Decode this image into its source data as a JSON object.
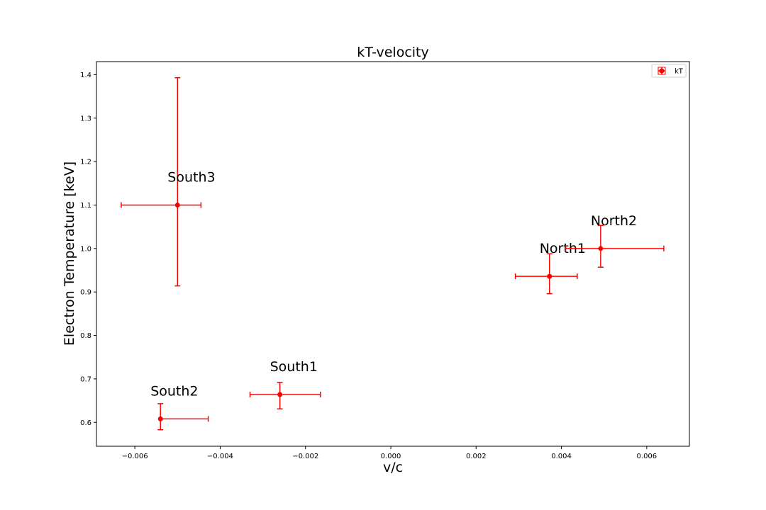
{
  "chart_data": {
    "type": "scatter",
    "title": "kT-velocity",
    "xlabel": "v/c",
    "ylabel": "Electron Temperature [keV]",
    "xlim": [
      -0.0069,
      0.007
    ],
    "ylim": [
      0.545,
      1.43
    ],
    "xticks": [
      -0.006,
      -0.004,
      -0.002,
      0.0,
      0.002,
      0.004,
      0.006
    ],
    "xtick_labels": [
      "−0.006",
      "−0.004",
      "−0.002",
      "0.000",
      "0.002",
      "0.004",
      "0.006"
    ],
    "yticks": [
      0.6,
      0.7,
      0.8,
      0.9,
      1.0,
      1.1,
      1.2,
      1.3,
      1.4
    ],
    "ytick_labels": [
      "0.6",
      "0.7",
      "0.8",
      "0.9",
      "1.0",
      "1.1",
      "1.2",
      "1.3",
      "1.4"
    ],
    "grid": false,
    "legend": {
      "position": "top-right",
      "entries": [
        "kT"
      ]
    },
    "color": "#ff0000",
    "series": [
      {
        "name": "kT",
        "points": [
          {
            "label": "South3",
            "x": -0.005,
            "y": 1.1,
            "xerr": [
              0.00132,
              0.00055
            ],
            "yerr": [
              0.186,
              0.293
            ]
          },
          {
            "label": "South2",
            "x": -0.0054,
            "y": 0.608,
            "xerr": [
              0.0,
              0.00112
            ],
            "yerr": [
              0.025,
              0.035
            ]
          },
          {
            "label": "South1",
            "x": -0.0026,
            "y": 0.664,
            "xerr": [
              0.0007,
              0.00095
            ],
            "yerr": [
              0.033,
              0.028
            ]
          },
          {
            "label": "North1",
            "x": 0.00372,
            "y": 0.936,
            "xerr": [
              0.0008,
              0.00065
            ],
            "yerr": [
              0.04,
              0.052
            ]
          },
          {
            "label": "North2",
            "x": 0.00492,
            "y": 1.0,
            "xerr": [
              0.00082,
              0.00148
            ],
            "yerr": [
              0.043,
              0.053
            ]
          }
        ]
      }
    ]
  }
}
